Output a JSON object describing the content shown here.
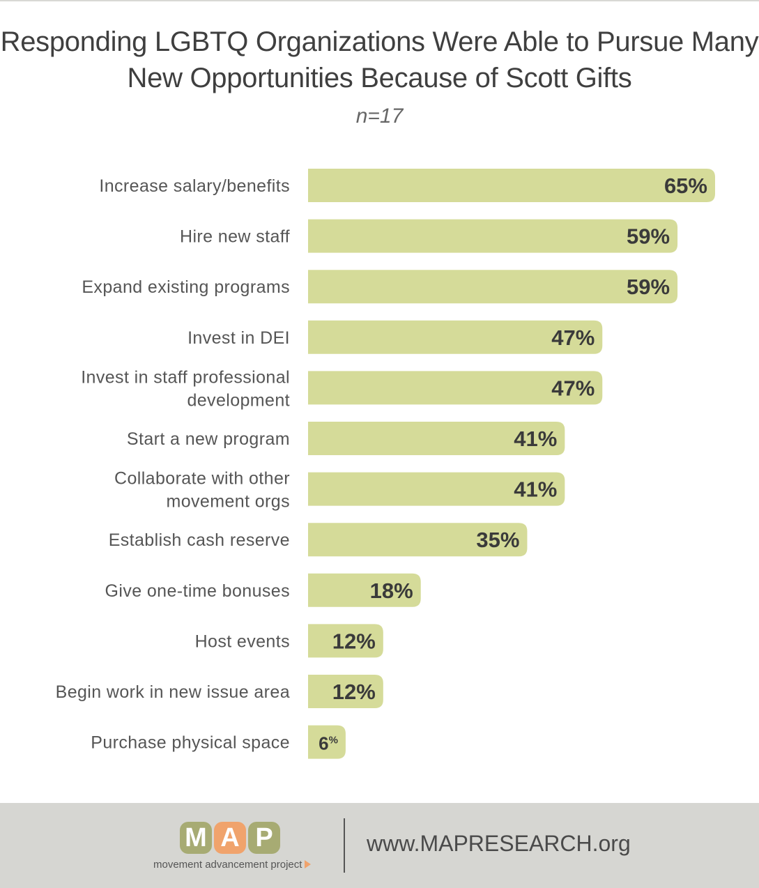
{
  "chart_data": {
    "type": "bar",
    "orientation": "horizontal",
    "title": "Responding LGBTQ Organizations Were Able to Pursue Many New Opportunities Because of Scott Gifts",
    "title_lines": [
      "Responding LGBTQ Organizations Were Able to Pursue Many",
      "New Opportunities Because of Scott Gifts"
    ],
    "subtitle": "n=17",
    "xlabel": "",
    "ylabel": "",
    "value_suffix": "%",
    "bar_color": "#d5db99",
    "label_color": "#3a3a3a",
    "grid": false,
    "xlim": [
      0,
      65
    ],
    "categories": [
      [
        "Increase salary/benefits"
      ],
      [
        "Hire new staff"
      ],
      [
        "Expand existing programs"
      ],
      [
        "Invest in DEI"
      ],
      [
        "Invest in staff professional",
        "development"
      ],
      [
        "Start a new program"
      ],
      [
        "Collaborate with other",
        "movement orgs"
      ],
      [
        "Establish cash reserve"
      ],
      [
        "Give one-time bonuses"
      ],
      [
        "Host events"
      ],
      [
        "Begin work in new issue area"
      ],
      [
        "Purchase physical space"
      ]
    ],
    "values": [
      65,
      59,
      59,
      47,
      47,
      41,
      41,
      35,
      18,
      12,
      12,
      6
    ]
  },
  "footer": {
    "logo_letters": [
      "M",
      "A",
      "P"
    ],
    "logo_tagline": "movement advancement project",
    "url": "www.MAPRESEARCH.org"
  }
}
